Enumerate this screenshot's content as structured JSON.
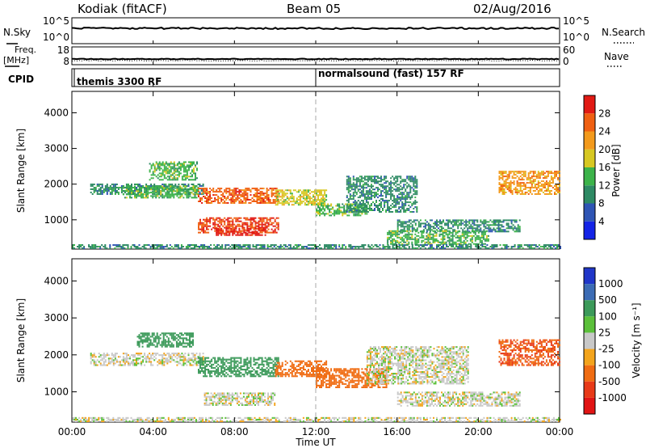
{
  "header": {
    "station": "Kodiak (fitACF)",
    "beam": "Beam 05",
    "date": "02/Aug/2016"
  },
  "strip": {
    "nsky_label": "N.Sky",
    "nsky_ticks": [
      "10^5",
      "10^0"
    ],
    "nsearch_label": "N.Search",
    "freq_label_line1": "Freq.",
    "freq_label_line2": "[MHz]",
    "freq_ticks": [
      "18",
      "8"
    ],
    "nave_ticks": [
      "60",
      "0"
    ],
    "nave_label": "Nave",
    "cpid_label": "CPID",
    "cpid_modes": [
      {
        "name": "themis 3300 RF",
        "start_hour": 0
      },
      {
        "name": "normalsound (fast) 157 RF",
        "start_hour": 12
      }
    ]
  },
  "chart_data": [
    {
      "type": "heatmap",
      "title": "",
      "xlabel": "",
      "ylabel": "Slant Range [km]",
      "xlim": [
        0,
        24
      ],
      "ylim": [
        180,
        4600
      ],
      "ytick_values": [
        1000,
        2000,
        3000,
        4000
      ],
      "ytick_labels": [
        "1000",
        "2000",
        "3000",
        "4000"
      ],
      "colorbar": {
        "label": "Power [dB]",
        "tick_labels": [
          "4",
          "8",
          "12",
          "16",
          "20",
          "24",
          "28"
        ],
        "colors": [
          "#1424e6",
          "#2f55b4",
          "#2e8a64",
          "#3cb34a",
          "#d7c822",
          "#f39a1c",
          "#f06012",
          "#e11a14"
        ]
      },
      "regions": [
        {
          "x": [
            0.9,
            6.5
          ],
          "y": [
            1700,
            2000
          ],
          "value": 8
        },
        {
          "x": [
            2.5,
            6.2
          ],
          "y": [
            1600,
            1950
          ],
          "value": 12
        },
        {
          "x": [
            3.8,
            6.2
          ],
          "y": [
            2100,
            2600
          ],
          "value": 12
        },
        {
          "x": [
            6.2,
            10.2
          ],
          "y": [
            1450,
            1900
          ],
          "value": 24
        },
        {
          "x": [
            6.2,
            10.2
          ],
          "y": [
            620,
            1050
          ],
          "value": 26
        },
        {
          "x": [
            7.0,
            9.5
          ],
          "y": [
            550,
            750
          ],
          "value": 28
        },
        {
          "x": [
            10.0,
            12.5
          ],
          "y": [
            1400,
            1850
          ],
          "value": 16
        },
        {
          "x": [
            12.0,
            14.5
          ],
          "y": [
            1100,
            1450
          ],
          "value": 12
        },
        {
          "x": [
            13.5,
            17.0
          ],
          "y": [
            1200,
            2200
          ],
          "value": 8
        },
        {
          "x": [
            16.0,
            22.0
          ],
          "y": [
            650,
            1000
          ],
          "value": 8
        },
        {
          "x": [
            15.5,
            20.5
          ],
          "y": [
            300,
            700
          ],
          "value": 12
        },
        {
          "x": [
            21.0,
            24.0
          ],
          "y": [
            1700,
            2350
          ],
          "value": 20
        },
        {
          "x": [
            0.0,
            24.0
          ],
          "y": [
            180,
            300
          ],
          "value": 8
        }
      ]
    },
    {
      "type": "heatmap",
      "title": "",
      "xlabel": "Time UT",
      "ylabel": "Slant Range [km]",
      "xlim": [
        0,
        24
      ],
      "ylim": [
        180,
        4600
      ],
      "xtick_values": [
        0,
        4,
        8,
        12,
        16,
        20,
        24
      ],
      "xtick_labels": [
        "00:00",
        "04:00",
        "08:00",
        "12:00",
        "16:00",
        "20:00",
        "00:00"
      ],
      "ytick_values": [
        1000,
        2000,
        3000,
        4000
      ],
      "ytick_labels": [
        "1000",
        "2000",
        "3000",
        "4000"
      ],
      "colorbar": {
        "label": "Velocity [m s⁻¹]",
        "tick_labels": [
          "1000",
          "500",
          "100",
          "25",
          "-25",
          "-100",
          "-500",
          "-1000"
        ],
        "colors": [
          "#2036c8",
          "#3c6cb4",
          "#3c9a5a",
          "#5bc03a",
          "#c8c8c8",
          "#f3a41c",
          "#f06c12",
          "#e83a18",
          "#e11414"
        ]
      },
      "regions": [
        {
          "x": [
            0.9,
            6.5
          ],
          "y": [
            1700,
            2050
          ],
          "value": 0
        },
        {
          "x": [
            3.2,
            6.0
          ],
          "y": [
            2200,
            2600
          ],
          "value": 150
        },
        {
          "x": [
            6.2,
            10.2
          ],
          "y": [
            1400,
            1900
          ],
          "value": 150
        },
        {
          "x": [
            6.5,
            10.0
          ],
          "y": [
            620,
            950
          ],
          "value": 0
        },
        {
          "x": [
            10.0,
            12.5
          ],
          "y": [
            1400,
            1850
          ],
          "value": -150
        },
        {
          "x": [
            12.0,
            15.5
          ],
          "y": [
            1100,
            1600
          ],
          "value": -150
        },
        {
          "x": [
            14.5,
            19.5
          ],
          "y": [
            1200,
            2200
          ],
          "value": 0
        },
        {
          "x": [
            16.0,
            22.0
          ],
          "y": [
            600,
            1000
          ],
          "value": 0
        },
        {
          "x": [
            21.0,
            24.0
          ],
          "y": [
            1700,
            2400
          ],
          "value": -300
        },
        {
          "x": [
            0.0,
            24.0
          ],
          "y": [
            180,
            300
          ],
          "value": 0
        }
      ]
    }
  ]
}
